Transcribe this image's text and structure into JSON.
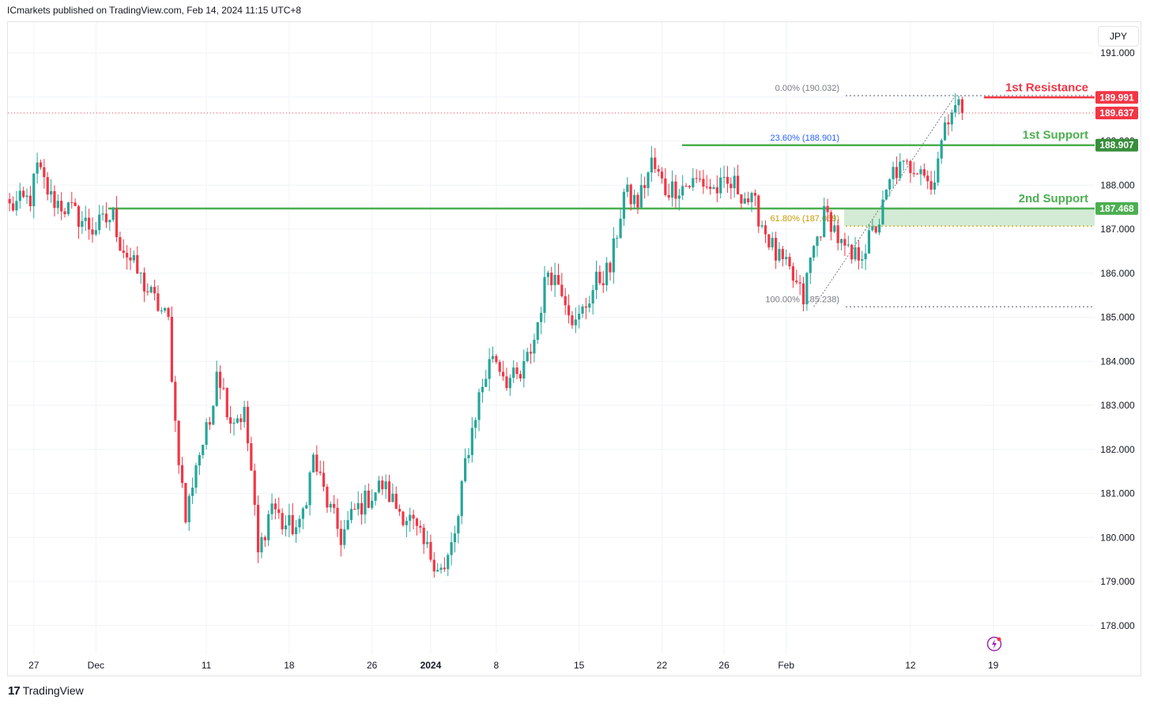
{
  "header": {
    "publisher_text": "ICmarkets published on TradingView.com, Feb 14, 2024 11:15 UTC+8"
  },
  "price_axis": {
    "currency": "JPY"
  },
  "footer": {
    "brand": "TradingView"
  },
  "colors": {
    "up": "#26a69a",
    "down": "#f23645",
    "resistance": "#f23645",
    "support": "#4caf50",
    "zone": "#c8e6c9",
    "fib": "#787b86",
    "fib_236": "#2962ff",
    "fib_618": "#c79a00",
    "badge_dark": "#131722"
  },
  "chart_data": {
    "type": "candlestick",
    "title": "",
    "ylim": [
      177.35,
      191.7
    ],
    "y_ticks": [
      178,
      179,
      180,
      181,
      182,
      183,
      184,
      185,
      186,
      187,
      188,
      189,
      190,
      191
    ],
    "y_tick_labels": [
      "178.000",
      "179.000",
      "180.000",
      "181.000",
      "182.000",
      "183.000",
      "184.000",
      "185.000",
      "186.000",
      "187.000",
      "188.000",
      "189.000",
      "190.000",
      "191.000"
    ],
    "x_tick_labels": [
      "27",
      "Dec",
      "11",
      "18",
      "26",
      "2024",
      "8",
      "15",
      "22",
      "26",
      "Feb",
      "12",
      "19"
    ],
    "x_tick_bars": [
      7,
      25,
      57,
      81,
      105,
      122,
      141,
      165,
      189,
      207,
      225,
      261,
      285
    ],
    "bar_count": 300,
    "anchors": [
      [
        0,
        187.5
      ],
      [
        6,
        187.7
      ],
      [
        8,
        188.4
      ],
      [
        12,
        187.7
      ],
      [
        18,
        187.4
      ],
      [
        24,
        187.0
      ],
      [
        30,
        187.3
      ],
      [
        32,
        186.7
      ],
      [
        40,
        185.6
      ],
      [
        46,
        184.9
      ],
      [
        48,
        182.6
      ],
      [
        51,
        180.4
      ],
      [
        54,
        181.7
      ],
      [
        58,
        182.6
      ],
      [
        60,
        183.9
      ],
      [
        64,
        182.7
      ],
      [
        68,
        182.8
      ],
      [
        70,
        181.5
      ],
      [
        72,
        179.6
      ],
      [
        76,
        180.8
      ],
      [
        79,
        180.3
      ],
      [
        84,
        180.2
      ],
      [
        88,
        181.8
      ],
      [
        92,
        180.8
      ],
      [
        96,
        180.0
      ],
      [
        100,
        180.6
      ],
      [
        108,
        181.2
      ],
      [
        112,
        180.7
      ],
      [
        116,
        180.4
      ],
      [
        120,
        179.8
      ],
      [
        126,
        179.2
      ],
      [
        130,
        180.4
      ],
      [
        132,
        181.7
      ],
      [
        136,
        183.2
      ],
      [
        140,
        184.2
      ],
      [
        144,
        183.6
      ],
      [
        148,
        183.6
      ],
      [
        152,
        184.5
      ],
      [
        156,
        186.1
      ],
      [
        160,
        185.7
      ],
      [
        164,
        184.8
      ],
      [
        170,
        185.8
      ],
      [
        174,
        186.1
      ],
      [
        178,
        187.8
      ],
      [
        182,
        187.6
      ],
      [
        186,
        188.5
      ],
      [
        190,
        187.9
      ],
      [
        196,
        188.0
      ],
      [
        200,
        188.1
      ],
      [
        204,
        187.9
      ],
      [
        210,
        188.0
      ],
      [
        216,
        187.5
      ],
      [
        222,
        186.4
      ],
      [
        226,
        186.0
      ],
      [
        230,
        185.4
      ],
      [
        232,
        186.3
      ],
      [
        236,
        187.3
      ],
      [
        238,
        187.2
      ],
      [
        241,
        186.6
      ],
      [
        244,
        186.3
      ],
      [
        248,
        186.6
      ],
      [
        252,
        187.2
      ],
      [
        256,
        188.3
      ],
      [
        260,
        188.4
      ],
      [
        264,
        188.5
      ],
      [
        267,
        187.9
      ],
      [
        269,
        188.7
      ],
      [
        271,
        189.2
      ],
      [
        273,
        189.9
      ],
      [
        274,
        189.95
      ],
      [
        276,
        189.64
      ]
    ],
    "levels": [
      {
        "name": "1st Resistance",
        "value": 189.991,
        "label": "189.991",
        "color": "resistance"
      },
      {
        "name": "1st Support",
        "value": 188.907,
        "label": "188.907",
        "color": "support"
      },
      {
        "name": "2nd Support",
        "value": 187.468,
        "label": "187.468",
        "color": "support"
      }
    ],
    "current_price": {
      "value": 189.637,
      "label": "189.637"
    },
    "fibonacci": [
      {
        "label": "0.00% (190.032)",
        "value": 190.032
      },
      {
        "label": "23.60% (188.901)",
        "value": 188.901
      },
      {
        "label": "61.80% (187.069)",
        "value": 187.069
      },
      {
        "label": "100.00% (185.238)",
        "value": 185.238
      }
    ],
    "fib_anchor_bars": [
      233,
      274
    ],
    "support_zone": [
      187.069,
      187.468
    ]
  }
}
